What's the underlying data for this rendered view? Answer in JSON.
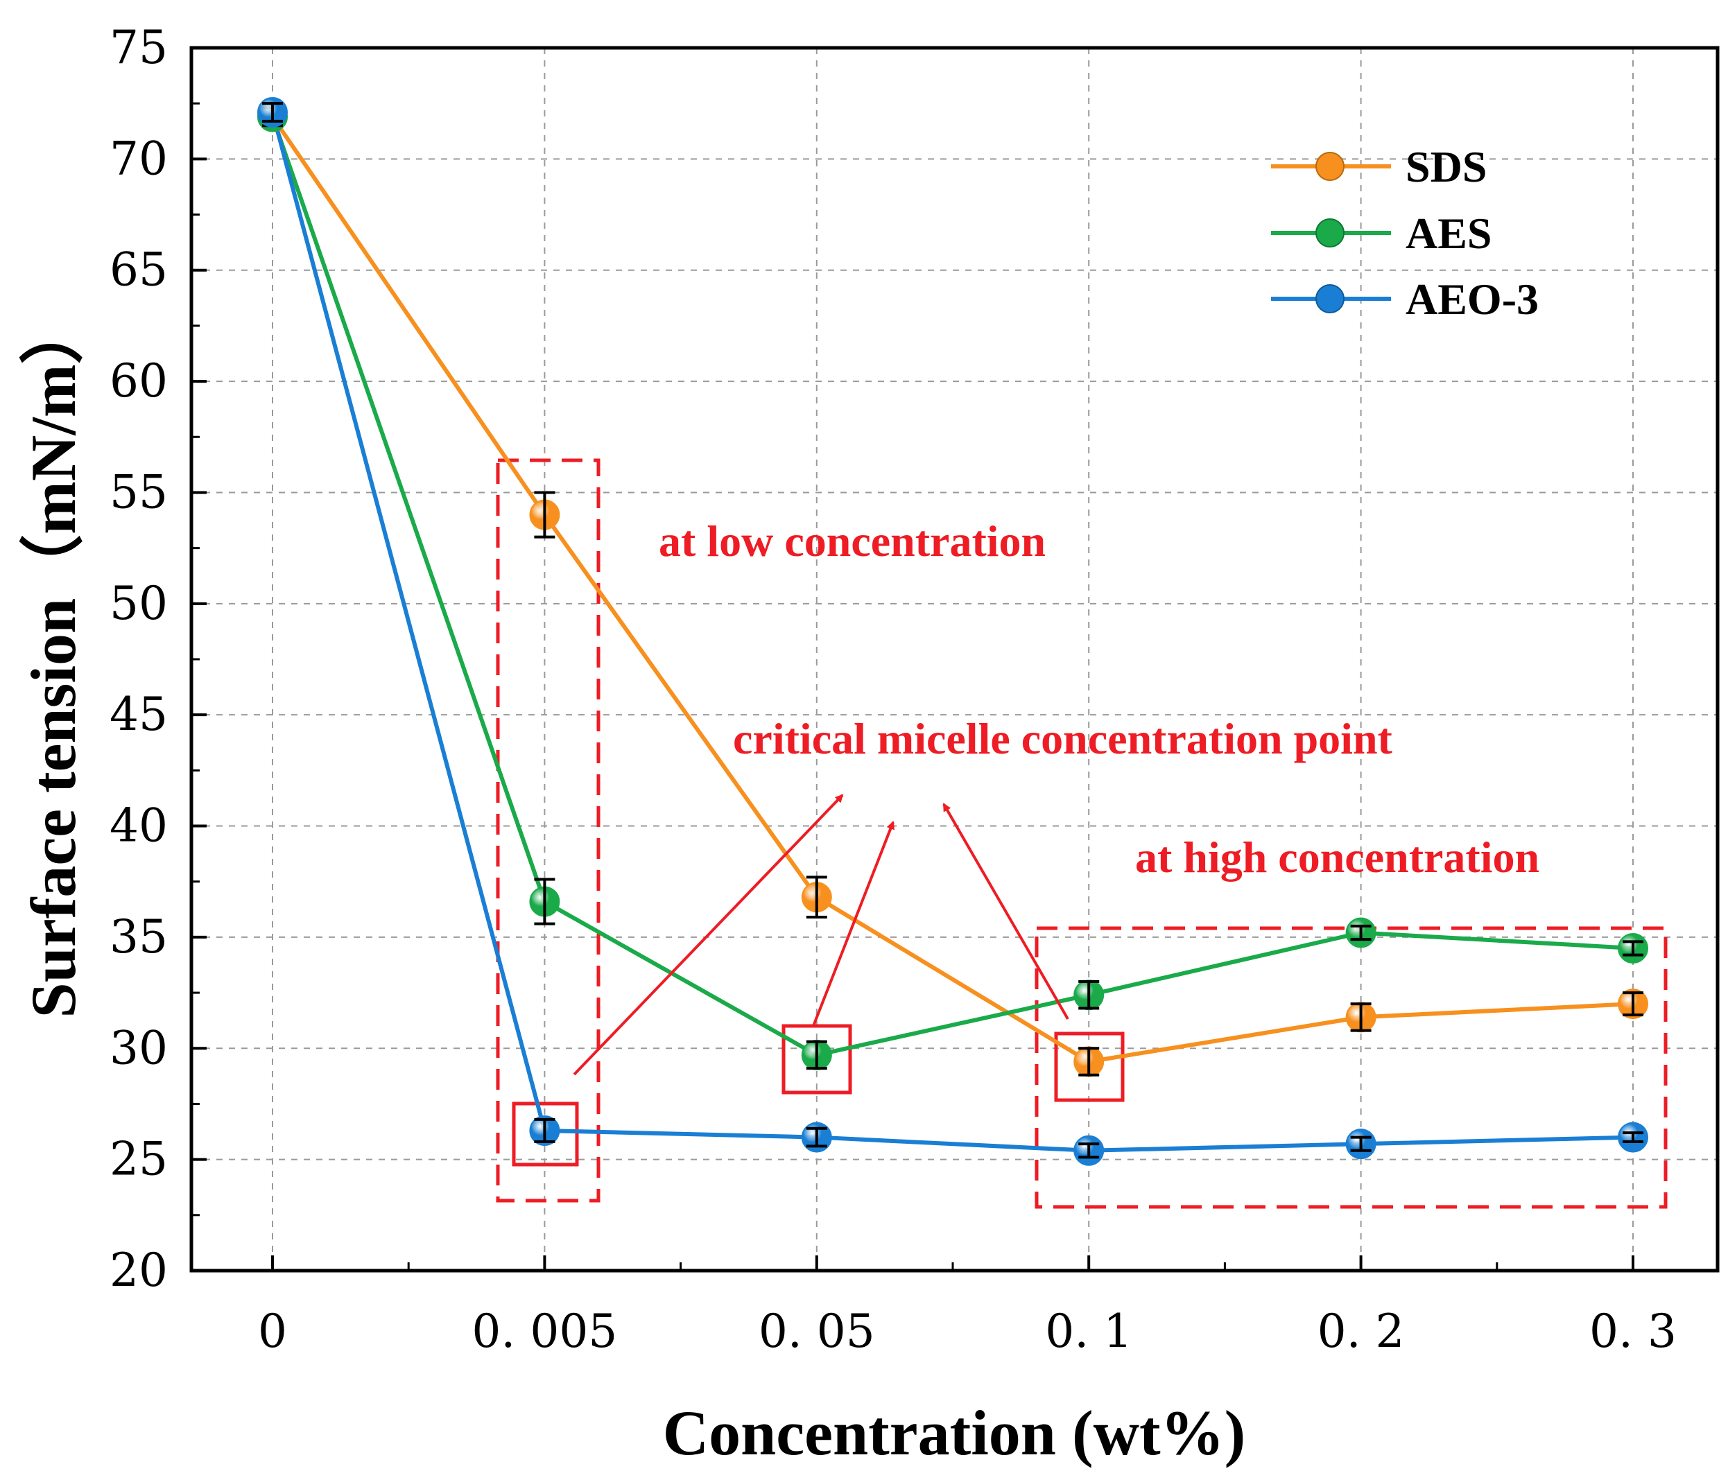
{
  "chart_data": {
    "type": "line",
    "categories": [
      "0",
      "0. 005",
      "0. 05",
      "0. 1",
      "0. 2",
      "0. 3"
    ],
    "xlabel": "Concentration (wt%)",
    "ylabel": "Surface tension（mN/m）",
    "ylim": [
      20,
      75
    ],
    "yticks": [
      "20",
      "25",
      "30",
      "35",
      "40",
      "45",
      "50",
      "55",
      "60",
      "65",
      "70",
      "75"
    ],
    "grid": true,
    "legend_position": "top-right",
    "series": [
      {
        "name": "SDS",
        "color": "#f7901e",
        "values": [
          71.9,
          54.0,
          36.8,
          29.4,
          31.4,
          32.0
        ],
        "errors": [
          0.4,
          1.0,
          0.9,
          0.6,
          0.6,
          0.5
        ]
      },
      {
        "name": "AES",
        "color": "#1aaa4a",
        "values": [
          71.9,
          36.6,
          29.7,
          32.4,
          35.2,
          34.5
        ],
        "errors": [
          0.4,
          1.0,
          0.6,
          0.6,
          0.3,
          0.3
        ]
      },
      {
        "name": "AEO-3",
        "color": "#1a7fd4",
        "values": [
          72.1,
          26.3,
          26.0,
          25.4,
          25.7,
          26.0
        ],
        "errors": [
          0.4,
          0.5,
          0.4,
          0.3,
          0.3,
          0.2
        ]
      }
    ],
    "annotations": {
      "low": "at low concentration",
      "cmc": "critical micelle concentration point",
      "high": "at high concentration"
    }
  }
}
